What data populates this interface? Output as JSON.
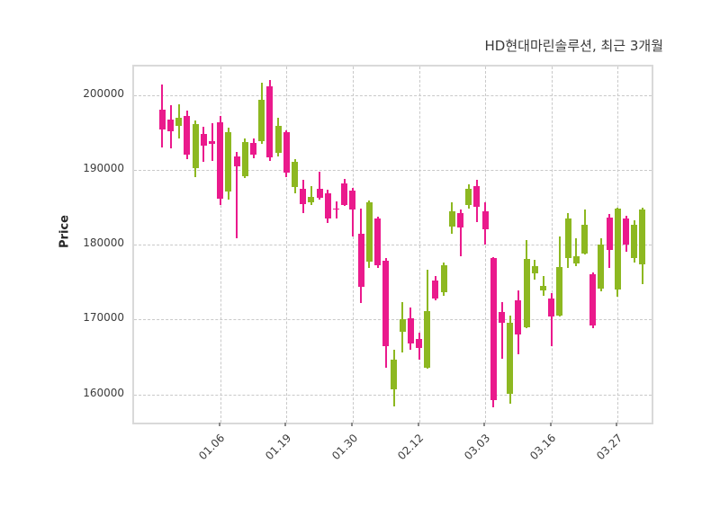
{
  "title": "HD현대마린솔루션, 최근 3개월",
  "ylabel": "Price",
  "colors": {
    "up": "#8db821",
    "down": "#ea1a8c",
    "grid": "#c9c9c9",
    "frame": "#d9d9d9",
    "text": "#3c3c3c",
    "title_text": "#3a3a3a",
    "background": "#ffffff"
  },
  "chart_data": {
    "type": "candlestick",
    "title": "HD현대마린솔루션, 최근 3개월",
    "ylabel": "Price",
    "xlabel": "",
    "grid": true,
    "ylim": [
      156200,
      203900
    ],
    "y_ticks": [
      160000,
      170000,
      180000,
      190000,
      200000
    ],
    "x_tick_indices": [
      7,
      15,
      23,
      31,
      39,
      47,
      55
    ],
    "x_tick_labels": [
      "01.06",
      "01.19",
      "01.30",
      "02.12",
      "03.03",
      "03.16",
      "03.27"
    ],
    "columns": [
      "open",
      "high",
      "low",
      "close"
    ],
    "candles": [
      [
        198100,
        201500,
        193100,
        195500
      ],
      [
        196800,
        198700,
        192900,
        195200
      ],
      [
        195900,
        198800,
        194300,
        197000
      ],
      [
        197300,
        198000,
        191500,
        192100
      ],
      [
        190300,
        196700,
        189100,
        196200
      ],
      [
        194900,
        195800,
        191100,
        193300
      ],
      [
        193900,
        196300,
        191300,
        193500
      ],
      [
        196400,
        197300,
        185400,
        186200
      ],
      [
        187100,
        195700,
        186100,
        195100
      ],
      [
        191900,
        192500,
        180900,
        190500
      ],
      [
        189200,
        194300,
        188900,
        193800
      ],
      [
        193700,
        194300,
        191600,
        192100
      ],
      [
        193900,
        201700,
        193500,
        199500
      ],
      [
        201300,
        202100,
        191300,
        191700
      ],
      [
        192300,
        197100,
        191900,
        195900
      ],
      [
        195100,
        195400,
        189100,
        189700
      ],
      [
        187700,
        191500,
        186900,
        191100
      ],
      [
        187500,
        188700,
        184300,
        185500
      ],
      [
        185700,
        187900,
        185300,
        186500
      ],
      [
        187500,
        189800,
        186100,
        186300
      ],
      [
        186900,
        187400,
        183000,
        183500
      ],
      [
        184900,
        185800,
        183600,
        184700
      ],
      [
        188300,
        188800,
        185200,
        185400
      ],
      [
        187300,
        187600,
        181100,
        184700
      ],
      [
        181500,
        184900,
        172200,
        174400
      ],
      [
        177700,
        186000,
        176900,
        185700
      ],
      [
        183500,
        183800,
        176900,
        177300
      ],
      [
        177900,
        178300,
        163600,
        166400
      ],
      [
        160600,
        166000,
        158400,
        164600
      ],
      [
        168300,
        172300,
        165600,
        170000
      ],
      [
        170200,
        171600,
        166000,
        166800
      ],
      [
        167400,
        168200,
        164600,
        166200
      ],
      [
        163600,
        176700,
        163400,
        171200
      ],
      [
        175200,
        175800,
        172600,
        172800
      ],
      [
        173600,
        177700,
        173200,
        177300
      ],
      [
        182500,
        185700,
        181500,
        184500
      ],
      [
        184300,
        184700,
        178500,
        182300
      ],
      [
        185300,
        188100,
        184900,
        187500
      ],
      [
        187900,
        188700,
        183100,
        185100
      ],
      [
        184500,
        185700,
        180100,
        182100
      ],
      [
        178300,
        178400,
        158200,
        159200
      ],
      [
        171000,
        172400,
        164800,
        169600
      ],
      [
        160000,
        170600,
        158800,
        169600
      ],
      [
        172600,
        173900,
        165300,
        168000
      ],
      [
        169000,
        180600,
        168800,
        178100
      ],
      [
        176200,
        178000,
        175400,
        177200
      ],
      [
        173900,
        175900,
        173200,
        174500
      ],
      [
        172800,
        173600,
        166400,
        170400
      ],
      [
        170600,
        181100,
        170400,
        177100
      ],
      [
        178300,
        184300,
        176900,
        183500
      ],
      [
        177500,
        180900,
        177100,
        178500
      ],
      [
        178900,
        184800,
        178700,
        182700
      ],
      [
        176100,
        176300,
        168800,
        169200
      ],
      [
        174200,
        180900,
        173800,
        180100
      ],
      [
        183700,
        184100,
        176900,
        179300
      ],
      [
        174000,
        185000,
        173000,
        184900
      ],
      [
        183500,
        183900,
        179100,
        180100
      ],
      [
        178300,
        183300,
        177700,
        182700
      ],
      [
        177400,
        185000,
        174800,
        184700
      ]
    ]
  }
}
